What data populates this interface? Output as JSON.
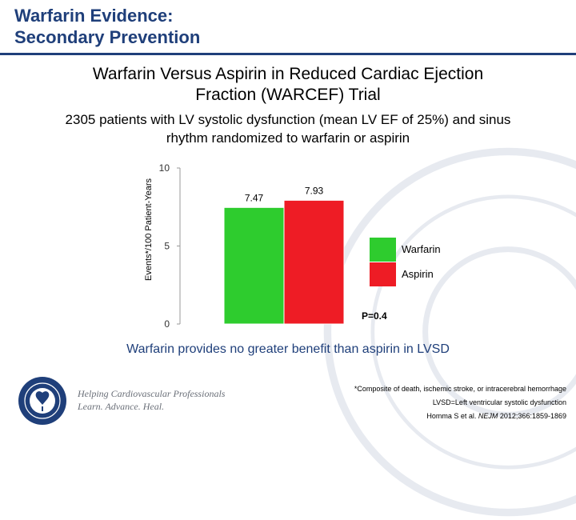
{
  "slide": {
    "title_line1": "Warfarin Evidence:",
    "title_line2": "Secondary Prevention",
    "subtitle_line1": "Warfarin Versus Aspirin in Reduced Cardiac Ejection",
    "subtitle_line2": "Fraction (WARCEF) Trial",
    "desc_line1": "2305 patients with LV systolic dysfunction (mean LV EF of 25%) and sinus",
    "desc_line2": "rhythm randomized to warfarin or aspirin",
    "conclusion": "Warfarin provides no greater benefit than aspirin in LVSD",
    "footnote1": "*Composite of death, ischemic stroke, or intracerebral hemorrhage",
    "footnote2": "LVSD=Left ventricular systolic dysfunction",
    "ref_authors": "Homma S et al. ",
    "ref_journal": "NEJM",
    "ref_rest": " 2012;366:1859-1869",
    "tagline1": "Helping Cardiovascular Professionals",
    "tagline2": "Learn. Advance. Heal."
  },
  "colors": {
    "title": "#1f3f7a",
    "warfarin": "#2ecc2e",
    "aspirin": "#ee1c25",
    "logo": "#1f3f7a"
  },
  "chart_data": {
    "type": "bar",
    "title": "",
    "xlabel": "",
    "ylabel": "Events*/100 Patient-Years",
    "ylim": [
      0,
      10
    ],
    "yticks": [
      0,
      5,
      10
    ],
    "series": [
      {
        "name": "Warfarin",
        "value": 7.47,
        "label": "7.47",
        "color": "#2ecc2e"
      },
      {
        "name": "Aspirin",
        "value": 7.93,
        "label": "7.93",
        "color": "#ee1c25"
      }
    ],
    "legend": "right",
    "annotation": "P=0.4",
    "grid": false
  }
}
